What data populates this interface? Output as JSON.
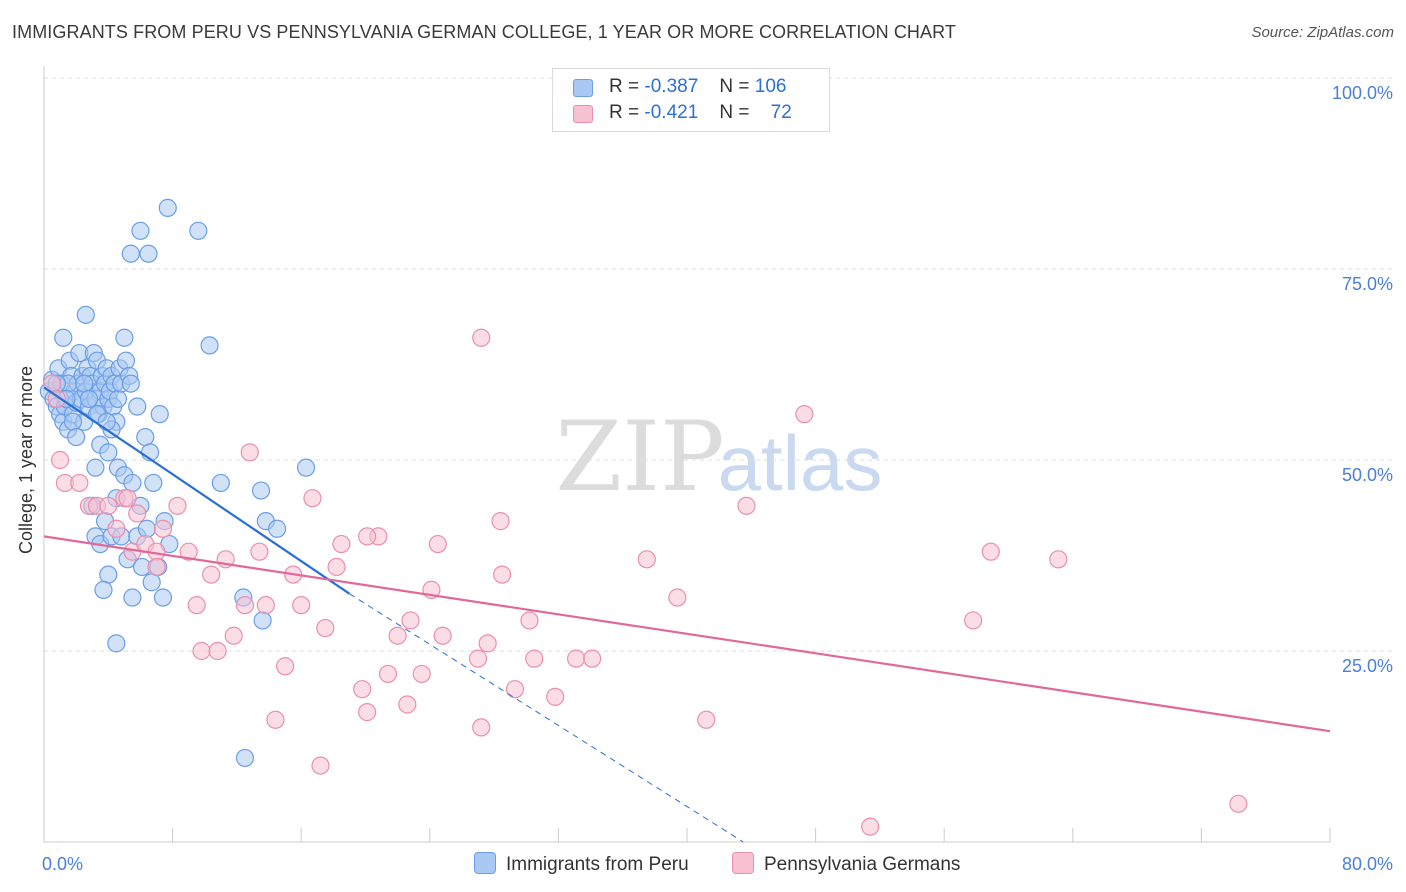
{
  "title": "IMMIGRANTS FROM PERU VS PENNSYLVANIA GERMAN COLLEGE, 1 YEAR OR MORE CORRELATION CHART",
  "source": "Source: ZipAtlas.com",
  "watermark": {
    "zip": "ZIP",
    "atlas": "atlas"
  },
  "legend": {
    "rows": [
      {
        "r_label": "R =",
        "r_value": "-0.387",
        "n_label": "N =",
        "n_value": "106"
      },
      {
        "r_label": "R =",
        "r_value": "-0.421",
        "n_label": "N =",
        "n_value": "72"
      }
    ]
  },
  "colors": {
    "blue_fill": "#a9c8f3",
    "blue_stroke": "#6b9ee6",
    "blue_line": "#2a6fd4",
    "pink_fill": "#f7c1d2",
    "pink_stroke": "#ea8fae",
    "pink_line": "#e0689a",
    "axis_text": "#4a80d6",
    "grid": "#dddddd"
  },
  "chart_data": {
    "type": "scatter",
    "ylabel": "College, 1 year or more",
    "xlim": [
      0,
      80
    ],
    "ylim": [
      0,
      100
    ],
    "x_tick_labels": [
      "0.0%",
      "80.0%"
    ],
    "y_ticks": [
      25,
      50,
      75,
      100
    ],
    "y_tick_labels": [
      "25.0%",
      "50.0%",
      "75.0%",
      "100.0%"
    ],
    "grid": true,
    "legend_position": "top-center",
    "series": [
      {
        "name": "Immigrants from Peru",
        "trend": {
          "x0": 0,
          "y0": 59.5,
          "x1": 19,
          "y1": 32.5,
          "dash_to_x": 43.5,
          "dash_to_y": 0
        },
        "points": [
          [
            0.3,
            59
          ],
          [
            0.5,
            60.5
          ],
          [
            0.6,
            58
          ],
          [
            0.8,
            57
          ],
          [
            0.9,
            62
          ],
          [
            1.0,
            56
          ],
          [
            1.1,
            60
          ],
          [
            1.2,
            55
          ],
          [
            1.3,
            57
          ],
          [
            1.4,
            58
          ],
          [
            1.5,
            54
          ],
          [
            1.6,
            63
          ],
          [
            1.7,
            61
          ],
          [
            1.8,
            56
          ],
          [
            1.9,
            59
          ],
          [
            2.0,
            57.5
          ],
          [
            2.1,
            60
          ],
          [
            2.2,
            64
          ],
          [
            2.3,
            58
          ],
          [
            2.4,
            61
          ],
          [
            2.5,
            55
          ],
          [
            2.6,
            59
          ],
          [
            2.7,
            62
          ],
          [
            2.8,
            57
          ],
          [
            2.9,
            61
          ],
          [
            3.0,
            60
          ],
          [
            3.1,
            64
          ],
          [
            3.2,
            58
          ],
          [
            3.3,
            63
          ],
          [
            3.4,
            56
          ],
          [
            3.5,
            59
          ],
          [
            3.6,
            61
          ],
          [
            3.7,
            57
          ],
          [
            3.8,
            60
          ],
          [
            3.9,
            62
          ],
          [
            4.0,
            58
          ],
          [
            4.1,
            59
          ],
          [
            4.2,
            61
          ],
          [
            4.3,
            57
          ],
          [
            4.4,
            60
          ],
          [
            4.5,
            55
          ],
          [
            4.6,
            58
          ],
          [
            4.7,
            62
          ],
          [
            4.8,
            60
          ],
          [
            5.0,
            66
          ],
          [
            5.1,
            63
          ],
          [
            5.3,
            61
          ],
          [
            5.4,
            60
          ],
          [
            2.6,
            69
          ],
          [
            1.2,
            66
          ],
          [
            1.5,
            60
          ],
          [
            0.8,
            60
          ],
          [
            3.2,
            49
          ],
          [
            3.5,
            52
          ],
          [
            4.0,
            51
          ],
          [
            4.2,
            54
          ],
          [
            4.6,
            49
          ],
          [
            5.0,
            48
          ],
          [
            5.5,
            47
          ],
          [
            5.8,
            57
          ],
          [
            6.0,
            44
          ],
          [
            6.3,
            53
          ],
          [
            6.6,
            51
          ],
          [
            6.8,
            47
          ],
          [
            7.2,
            56
          ],
          [
            7.5,
            42
          ],
          [
            3.0,
            44
          ],
          [
            3.2,
            40
          ],
          [
            3.5,
            39
          ],
          [
            3.8,
            42
          ],
          [
            4.2,
            40
          ],
          [
            4.5,
            45
          ],
          [
            4.8,
            40
          ],
          [
            5.2,
            37
          ],
          [
            5.5,
            32
          ],
          [
            5.8,
            40
          ],
          [
            6.1,
            36
          ],
          [
            6.4,
            41
          ],
          [
            6.7,
            34
          ],
          [
            7.1,
            36
          ],
          [
            7.4,
            32
          ],
          [
            7.8,
            39
          ],
          [
            6.0,
            80
          ],
          [
            6.5,
            77
          ],
          [
            5.4,
            77
          ],
          [
            7.7,
            83
          ],
          [
            9.6,
            80
          ],
          [
            10.3,
            65
          ],
          [
            11.0,
            47
          ],
          [
            13.5,
            46
          ],
          [
            13.8,
            42
          ],
          [
            14.5,
            41
          ],
          [
            16.3,
            49
          ],
          [
            4.0,
            35
          ],
          [
            3.7,
            33
          ],
          [
            4.5,
            26
          ],
          [
            12.4,
            32
          ],
          [
            13.6,
            29
          ],
          [
            12.5,
            11
          ],
          [
            2.5,
            60
          ],
          [
            1.8,
            55
          ],
          [
            2.0,
            53
          ],
          [
            1.4,
            58
          ],
          [
            3.3,
            56
          ],
          [
            2.8,
            58
          ],
          [
            3.9,
            55
          ]
        ]
      },
      {
        "name": "Pennsylvania Germans",
        "trend": {
          "x0": 0,
          "y0": 40,
          "x1": 80,
          "y1": 14.5
        },
        "points": [
          [
            0.5,
            60
          ],
          [
            0.8,
            58
          ],
          [
            1.0,
            50
          ],
          [
            1.3,
            47
          ],
          [
            2.2,
            47
          ],
          [
            2.8,
            44
          ],
          [
            3.3,
            44
          ],
          [
            4.0,
            44
          ],
          [
            4.5,
            41
          ],
          [
            5.0,
            45
          ],
          [
            5.5,
            38
          ],
          [
            5.8,
            43
          ],
          [
            6.3,
            39
          ],
          [
            7.0,
            38
          ],
          [
            7.4,
            41
          ],
          [
            8.3,
            44
          ],
          [
            9.0,
            38
          ],
          [
            9.5,
            31
          ],
          [
            9.8,
            25
          ],
          [
            10.4,
            35
          ],
          [
            10.8,
            25
          ],
          [
            11.3,
            37
          ],
          [
            11.8,
            27
          ],
          [
            12.5,
            31
          ],
          [
            13.4,
            38
          ],
          [
            13.8,
            31
          ],
          [
            14.4,
            16
          ],
          [
            15.0,
            23
          ],
          [
            15.5,
            35
          ],
          [
            16.0,
            31
          ],
          [
            16.7,
            45
          ],
          [
            17.5,
            28
          ],
          [
            17.2,
            10
          ],
          [
            18.2,
            36
          ],
          [
            18.5,
            39
          ],
          [
            19.8,
            20
          ],
          [
            20.1,
            17
          ],
          [
            20.8,
            40
          ],
          [
            21.4,
            22
          ],
          [
            22.0,
            27
          ],
          [
            22.6,
            18
          ],
          [
            22.8,
            29
          ],
          [
            23.5,
            22
          ],
          [
            24.1,
            33
          ],
          [
            24.5,
            39
          ],
          [
            24.8,
            27
          ],
          [
            27.0,
            24
          ],
          [
            27.2,
            15
          ],
          [
            27.6,
            26
          ],
          [
            28.4,
            42
          ],
          [
            28.5,
            35
          ],
          [
            29.3,
            20
          ],
          [
            30.2,
            29
          ],
          [
            30.5,
            24
          ],
          [
            31.8,
            19
          ],
          [
            33.1,
            24
          ],
          [
            34.1,
            24
          ],
          [
            37.5,
            37
          ],
          [
            39.4,
            32
          ],
          [
            41.2,
            16
          ],
          [
            43.7,
            44
          ],
          [
            47.3,
            56
          ],
          [
            51.4,
            2
          ],
          [
            57.8,
            29
          ],
          [
            58.9,
            38
          ],
          [
            63.1,
            37
          ],
          [
            74.3,
            5
          ],
          [
            27.2,
            66
          ],
          [
            12.8,
            51
          ],
          [
            7.0,
            36
          ],
          [
            20.1,
            40
          ],
          [
            5.2,
            45
          ]
        ]
      }
    ]
  }
}
